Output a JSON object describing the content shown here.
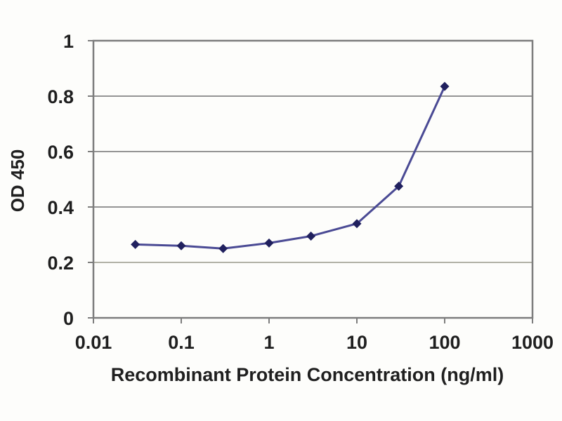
{
  "chart_data": {
    "type": "line",
    "title": "",
    "xlabel": "Recombinant Protein Concentration (ng/ml)",
    "ylabel": "OD 450",
    "x_scale": "log",
    "xlim": [
      0.01,
      1000
    ],
    "ylim": [
      0,
      1
    ],
    "x_ticks": [
      0.01,
      0.1,
      1,
      10,
      100,
      1000
    ],
    "x_tick_labels": [
      "0.01",
      "0.1",
      "1",
      "10",
      "100",
      "1000"
    ],
    "y_ticks": [
      0,
      0.2,
      0.4,
      0.6,
      0.8,
      1
    ],
    "y_tick_labels": [
      "0",
      "0.2",
      "0.4",
      "0.6",
      "0.8",
      "1"
    ],
    "grid": true,
    "legend": "none",
    "y_gridlines": [
      {
        "value": 0.2,
        "color": "#b2b2a6"
      },
      {
        "value": 0.4,
        "color": "#949494"
      },
      {
        "value": 0.6,
        "color": "#949494"
      },
      {
        "value": 0.8,
        "color": "#949494"
      }
    ],
    "series": [
      {
        "name": "OD 450",
        "x": [
          0.03,
          0.1,
          0.3,
          1,
          3,
          10,
          30,
          100
        ],
        "y": [
          0.265,
          0.26,
          0.25,
          0.27,
          0.295,
          0.34,
          0.475,
          0.835
        ],
        "marker": "diamond"
      }
    ],
    "colors": {
      "line": "#4a4a94",
      "marker": "#20205e",
      "plot_border": "#7d7d7d",
      "tick": "#7d7d7d",
      "text": "#1f1f1f",
      "background": "#fdfdfb"
    }
  }
}
